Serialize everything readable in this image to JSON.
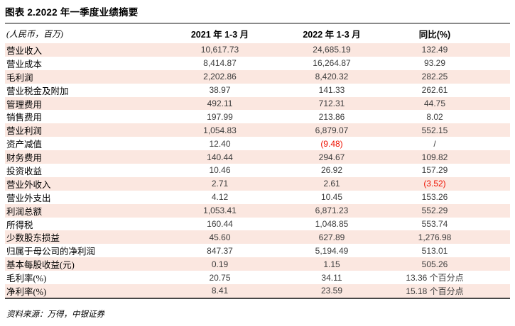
{
  "title": "图表 2.2022 年一季度业绩摘要",
  "table": {
    "unit_label": "(人民币，百万)",
    "col_headers": [
      "2021 年 1-3 月",
      "2022 年 1-3 月",
      "同比(%)"
    ],
    "rows": [
      {
        "label": "营业收入",
        "v2021": "10,617.73",
        "v2022": "24,685.19",
        "yoy": "132.49"
      },
      {
        "label": "营业成本",
        "v2021": "8,414.87",
        "v2022": "16,264.87",
        "yoy": "93.29"
      },
      {
        "label": "毛利润",
        "v2021": "2,202.86",
        "v2022": "8,420.32",
        "yoy": "282.25"
      },
      {
        "label": "营业税金及附加",
        "v2021": "38.97",
        "v2022": "141.33",
        "yoy": "262.61"
      },
      {
        "label": "管理费用",
        "v2021": "492.11",
        "v2022": "712.31",
        "yoy": "44.75"
      },
      {
        "label": "销售费用",
        "v2021": "197.99",
        "v2022": "213.86",
        "yoy": "8.02"
      },
      {
        "label": "营业利润",
        "v2021": "1,054.83",
        "v2022": "6,879.07",
        "yoy": "552.15"
      },
      {
        "label": "资产减值",
        "v2021": "12.40",
        "v2022": "(9.48)",
        "v2022_neg": true,
        "yoy": "/"
      },
      {
        "label": "财务费用",
        "v2021": "140.44",
        "v2022": "294.67",
        "yoy": "109.82"
      },
      {
        "label": "投资收益",
        "v2021": "10.46",
        "v2022": "26.92",
        "yoy": "157.29"
      },
      {
        "label": "营业外收入",
        "v2021": "2.71",
        "v2022": "2.61",
        "yoy": "(3.52)",
        "yoy_neg": true
      },
      {
        "label": "营业外支出",
        "v2021": "4.12",
        "v2022": "10.45",
        "yoy": "153.26"
      },
      {
        "label": "利润总额",
        "v2021": "1,053.41",
        "v2022": "6,871.23",
        "yoy": "552.29"
      },
      {
        "label": "所得税",
        "v2021": "160.44",
        "v2022": "1,048.85",
        "yoy": "553.74"
      },
      {
        "label": "少数股东损益",
        "v2021": "45.60",
        "v2022": "627.89",
        "yoy": "1,276.98"
      },
      {
        "label": "归属于母公司的净利润",
        "v2021": "847.37",
        "v2022": "5,194.49",
        "yoy": "513.01"
      },
      {
        "label": "基本每股收益(元)",
        "v2021": "0.19",
        "v2022": "1.15",
        "yoy": "505.26"
      },
      {
        "label": "毛利率(%)",
        "v2021": "20.75",
        "v2022": "34.11",
        "yoy": "13.36 个百分点"
      },
      {
        "label": "净利率(%)",
        "v2021": "8.41",
        "v2022": "23.59",
        "yoy": "15.18 个百分点"
      }
    ]
  },
  "footer": {
    "source": "资料来源：万得，中银证券"
  },
  "colors": {
    "stripe_bg": "#fbe7e0",
    "negative_text": "#ee1100",
    "rule_gray": "#8a8a8a",
    "rule_dark": "#474747"
  }
}
